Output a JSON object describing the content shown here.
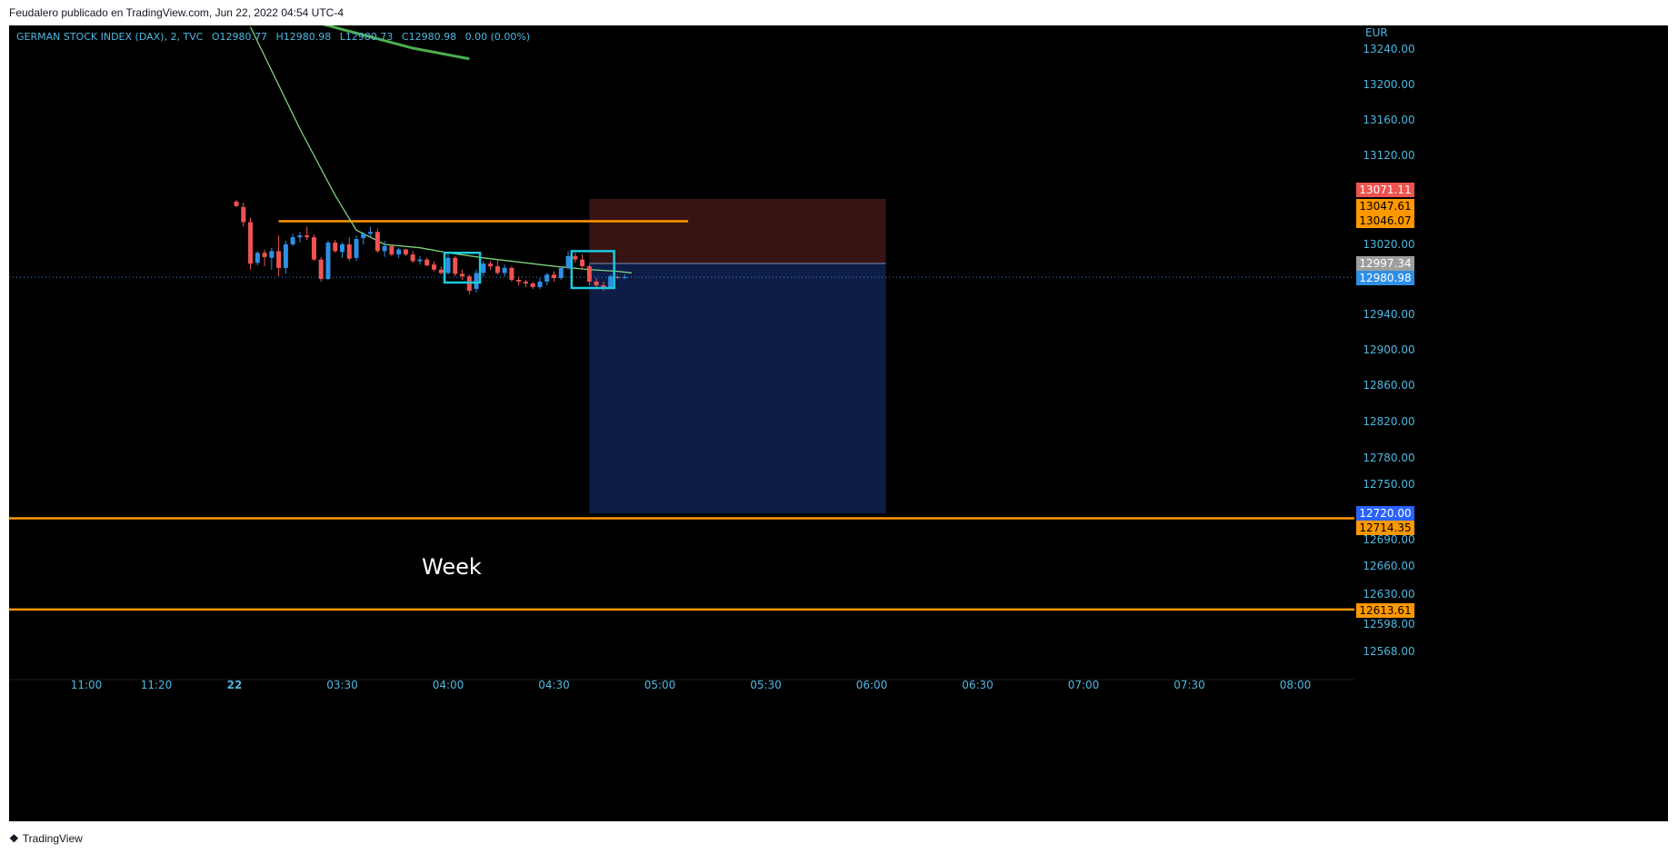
{
  "header": {
    "publisher_line": "Feudalero publicado en TradingView.com, Jun 22, 2022 04:54 UTC-4"
  },
  "legend": {
    "symbol": "GERMAN STOCK INDEX (DAX), 2, TVC",
    "open": "O12980.77",
    "high": "H12980.98",
    "low": "L12980.73",
    "close": "C12980.98",
    "change": "0.00 (0.00%)"
  },
  "footer": {
    "brand": "TradingView",
    "logo": "tradingview-logo-icon"
  },
  "colors": {
    "background": "#000000",
    "up": "#2f8fe6",
    "down": "#ef5350",
    "axis_text": "#4fb7e0",
    "orange": "#ff9800",
    "ma_green": "#4caf50",
    "box_cyan": "#1ec8dc"
  },
  "chart_data": {
    "type": "candlestick",
    "currency_label": "EUR",
    "y_ticks": [
      "13240.00",
      "13200.00",
      "13160.00",
      "13120.00",
      "13020.00",
      "12940.00",
      "12900.00",
      "12860.00",
      "12820.00",
      "12780.00",
      "12750.00",
      "12690.00",
      "12660.00",
      "12630.00",
      "12598.00",
      "12568.00"
    ],
    "x_ticks": [
      "11:00",
      "11:20",
      "22",
      "03:30",
      "04:00",
      "04:30",
      "05:00",
      "05:30",
      "06:00",
      "06:30",
      "07:00",
      "07:30",
      "08:00"
    ],
    "price_labels": [
      {
        "value": "13071.11",
        "color": "#ef5350"
      },
      {
        "value": "13047.61",
        "color": "#ff9800"
      },
      {
        "value": "13046.07",
        "color": "#ff9800"
      },
      {
        "value": "12997.34",
        "color": "#9e9e9e"
      },
      {
        "value": "12980.98",
        "color": "#2f8fe6"
      },
      {
        "value": "12720.00",
        "color": "#2962ff"
      },
      {
        "value": "12714.35",
        "color": "#ff9800"
      },
      {
        "value": "12613.61",
        "color": "#ff9800"
      }
    ],
    "horizontal_lines": [
      {
        "price": 12714.35,
        "color": "#ff9800",
        "extent": "full"
      },
      {
        "price": 12613.61,
        "color": "#ff9800",
        "extent": "full"
      },
      {
        "price": 13046.07,
        "color": "#ff9800",
        "extent": "segment",
        "from": "03:12",
        "to": "05:08"
      },
      {
        "price": 12980.98,
        "color": "#2f8fe6",
        "extent": "full",
        "style": "dotted"
      }
    ],
    "annotation_text": "Week",
    "position_tool": {
      "type": "short",
      "entry": 12997.34,
      "stop": 13071.11,
      "target": 12720.0,
      "from": "04:40",
      "to": "06:04"
    },
    "highlight_boxes": [
      {
        "from": "04:00",
        "to": "04:08",
        "top": 13010,
        "bottom": 12975
      },
      {
        "from": "04:36",
        "to": "04:46",
        "top": 13012,
        "bottom": 12969
      }
    ],
    "ma_long": [
      [
        "03:02",
        13295
      ],
      [
        "03:18",
        13275
      ],
      [
        "03:34",
        13258
      ],
      [
        "03:50",
        13241
      ],
      [
        "04:06",
        13229
      ]
    ],
    "ma_short": [
      [
        "03:04",
        13265
      ],
      [
        "03:18",
        13150
      ],
      [
        "03:28",
        13075
      ],
      [
        "03:34",
        13036
      ],
      [
        "03:42",
        13020
      ],
      [
        "03:52",
        13016
      ],
      [
        "04:00",
        13010
      ],
      [
        "04:10",
        13004
      ],
      [
        "04:20",
        12999
      ],
      [
        "04:30",
        12994
      ],
      [
        "04:40",
        12990
      ],
      [
        "04:48",
        12988
      ],
      [
        "04:52",
        12986
      ]
    ],
    "candles": [
      {
        "t": "03:00",
        "o": 13068,
        "h": 13070,
        "l": 13062,
        "c": 13063
      },
      {
        "t": "03:02",
        "o": 13062,
        "h": 13067,
        "l": 13040,
        "c": 13045
      },
      {
        "t": "03:04",
        "o": 13045,
        "h": 13050,
        "l": 12990,
        "c": 12997
      },
      {
        "t": "03:06",
        "o": 12998,
        "h": 13012,
        "l": 12995,
        "c": 13010
      },
      {
        "t": "03:08",
        "o": 13010,
        "h": 13014,
        "l": 12994,
        "c": 13005
      },
      {
        "t": "03:10",
        "o": 13004,
        "h": 13016,
        "l": 12990,
        "c": 13012
      },
      {
        "t": "03:12",
        "o": 13012,
        "h": 13030,
        "l": 12982,
        "c": 12992
      },
      {
        "t": "03:14",
        "o": 12992,
        "h": 13024,
        "l": 12985,
        "c": 13020
      },
      {
        "t": "03:16",
        "o": 13020,
        "h": 13032,
        "l": 13018,
        "c": 13028
      },
      {
        "t": "03:18",
        "o": 13028,
        "h": 13034,
        "l": 13022,
        "c": 13030
      },
      {
        "t": "03:20",
        "o": 13030,
        "h": 13040,
        "l": 13025,
        "c": 13028
      },
      {
        "t": "03:22",
        "o": 13028,
        "h": 13031,
        "l": 13000,
        "c": 13002
      },
      {
        "t": "03:24",
        "o": 13002,
        "h": 13005,
        "l": 12976,
        "c": 12979
      },
      {
        "t": "03:26",
        "o": 12979,
        "h": 13024,
        "l": 12978,
        "c": 13022
      },
      {
        "t": "03:28",
        "o": 13022,
        "h": 13025,
        "l": 13010,
        "c": 13012
      },
      {
        "t": "03:30",
        "o": 13011,
        "h": 13022,
        "l": 13004,
        "c": 13020
      },
      {
        "t": "03:32",
        "o": 13020,
        "h": 13028,
        "l": 13000,
        "c": 13003
      },
      {
        "t": "03:34",
        "o": 13004,
        "h": 13030,
        "l": 13000,
        "c": 13026
      },
      {
        "t": "03:36",
        "o": 13027,
        "h": 13034,
        "l": 13020,
        "c": 13032
      },
      {
        "t": "03:38",
        "o": 13032,
        "h": 13040,
        "l": 13028,
        "c": 13034
      },
      {
        "t": "03:40",
        "o": 13034,
        "h": 13038,
        "l": 13010,
        "c": 13012
      },
      {
        "t": "03:42",
        "o": 13012,
        "h": 13024,
        "l": 13005,
        "c": 13018
      },
      {
        "t": "03:44",
        "o": 13018,
        "h": 13020,
        "l": 13006,
        "c": 13008
      },
      {
        "t": "03:46",
        "o": 13008,
        "h": 13016,
        "l": 13004,
        "c": 13014
      },
      {
        "t": "03:48",
        "o": 13014,
        "h": 13015,
        "l": 13006,
        "c": 13008
      },
      {
        "t": "03:50",
        "o": 13008,
        "h": 13012,
        "l": 12998,
        "c": 13000
      },
      {
        "t": "03:52",
        "o": 13000,
        "h": 13006,
        "l": 12996,
        "c": 13002
      },
      {
        "t": "03:54",
        "o": 13002,
        "h": 13004,
        "l": 12994,
        "c": 12995
      },
      {
        "t": "03:56",
        "o": 12996,
        "h": 13000,
        "l": 12988,
        "c": 12990
      },
      {
        "t": "03:58",
        "o": 12990,
        "h": 12994,
        "l": 12984,
        "c": 12986
      },
      {
        "t": "04:00",
        "o": 12986,
        "h": 13008,
        "l": 12984,
        "c": 13004
      },
      {
        "t": "04:02",
        "o": 13004,
        "h": 13006,
        "l": 12982,
        "c": 12985
      },
      {
        "t": "04:04",
        "o": 12985,
        "h": 12990,
        "l": 12978,
        "c": 12982
      },
      {
        "t": "04:06",
        "o": 12982,
        "h": 12984,
        "l": 12962,
        "c": 12966
      },
      {
        "t": "04:08",
        "o": 12968,
        "h": 12990,
        "l": 12964,
        "c": 12986
      },
      {
        "t": "04:10",
        "o": 12986,
        "h": 13000,
        "l": 12982,
        "c": 12997
      },
      {
        "t": "04:12",
        "o": 12997,
        "h": 13000,
        "l": 12990,
        "c": 12994
      },
      {
        "t": "04:14",
        "o": 12994,
        "h": 13002,
        "l": 12984,
        "c": 12986
      },
      {
        "t": "04:16",
        "o": 12986,
        "h": 12996,
        "l": 12982,
        "c": 12992
      },
      {
        "t": "04:18",
        "o": 12992,
        "h": 12994,
        "l": 12976,
        "c": 12978
      },
      {
        "t": "04:20",
        "o": 12978,
        "h": 12982,
        "l": 12972,
        "c": 12976
      },
      {
        "t": "04:22",
        "o": 12976,
        "h": 12978,
        "l": 12970,
        "c": 12974
      },
      {
        "t": "04:24",
        "o": 12974,
        "h": 12976,
        "l": 12968,
        "c": 12970
      },
      {
        "t": "04:26",
        "o": 12970,
        "h": 12980,
        "l": 12968,
        "c": 12976
      },
      {
        "t": "04:28",
        "o": 12976,
        "h": 12986,
        "l": 12972,
        "c": 12984
      },
      {
        "t": "04:30",
        "o": 12984,
        "h": 12988,
        "l": 12976,
        "c": 12980
      },
      {
        "t": "04:32",
        "o": 12980,
        "h": 12994,
        "l": 12978,
        "c": 12992
      },
      {
        "t": "04:34",
        "o": 12992,
        "h": 13012,
        "l": 12990,
        "c": 13006
      },
      {
        "t": "04:36",
        "o": 13006,
        "h": 13010,
        "l": 12998,
        "c": 13002
      },
      {
        "t": "04:38",
        "o": 13002,
        "h": 13008,
        "l": 12990,
        "c": 12994
      },
      {
        "t": "04:40",
        "o": 12994,
        "h": 12996,
        "l": 12972,
        "c": 12976
      },
      {
        "t": "04:42",
        "o": 12976,
        "h": 12980,
        "l": 12968,
        "c": 12972
      },
      {
        "t": "04:44",
        "o": 12972,
        "h": 12976,
        "l": 12966,
        "c": 12968
      },
      {
        "t": "04:46",
        "o": 12970,
        "h": 12984,
        "l": 12968,
        "c": 12982
      },
      {
        "t": "04:48",
        "o": 12981,
        "h": 12983,
        "l": 12979,
        "c": 12980
      },
      {
        "t": "04:50",
        "o": 12980,
        "h": 12984,
        "l": 12979,
        "c": 12981
      }
    ]
  }
}
